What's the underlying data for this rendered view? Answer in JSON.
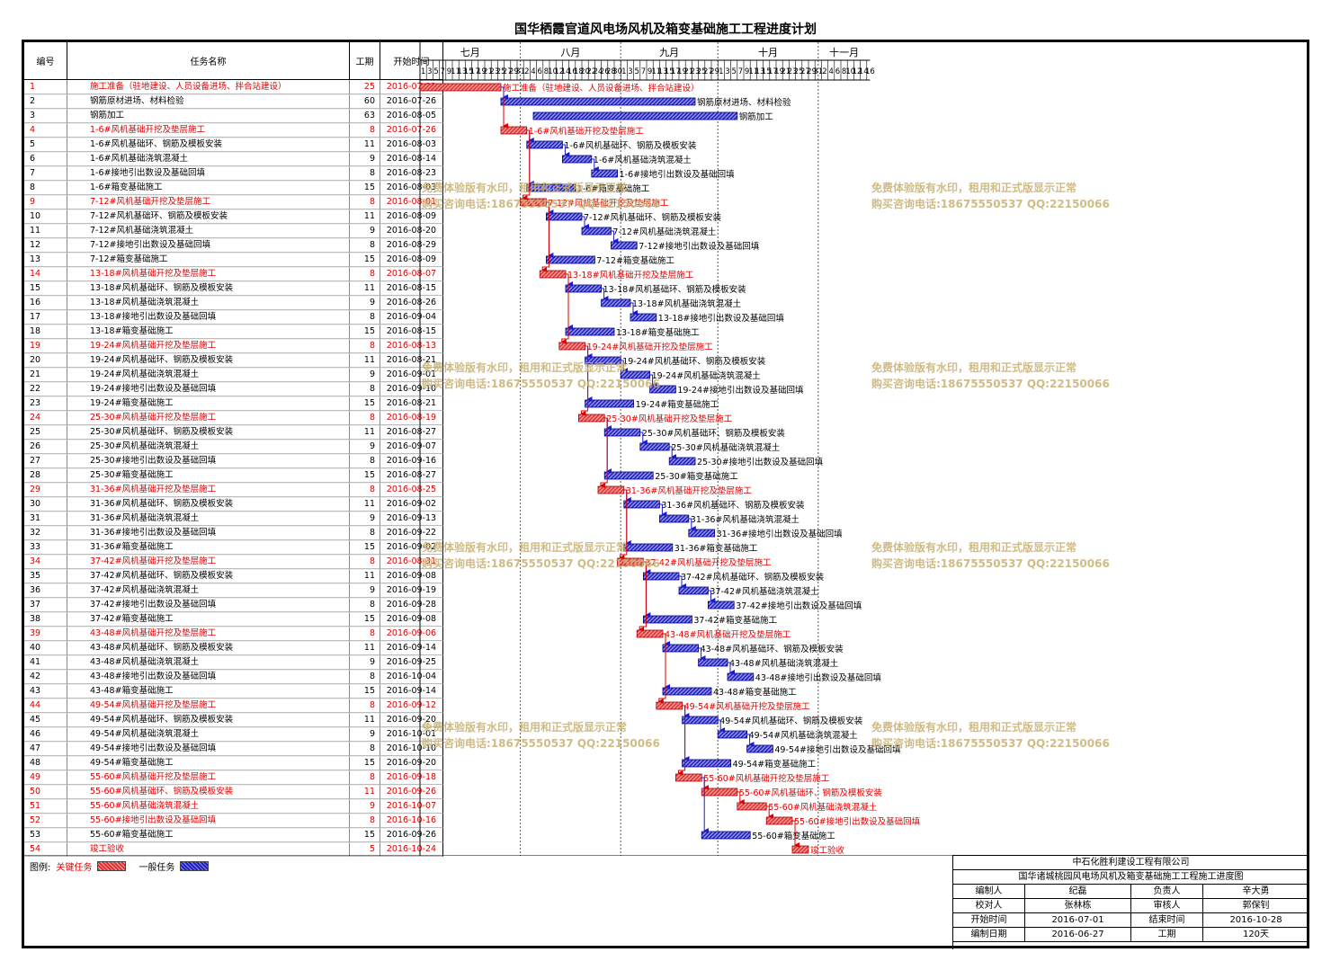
{
  "title": "国华栖霞官道风电场风机及箱变基础施工工程进度计划",
  "columns": {
    "no": "编号",
    "name": "任务名称",
    "duration": "工期",
    "start": "开始时间"
  },
  "months": [
    "七月",
    "八月",
    "九月",
    "十月",
    "十一月"
  ],
  "tasks": [
    {
      "no": "1",
      "name": "施工准备（驻地建设、人员设备进场、拌合站建设）",
      "duration": "25",
      "start": "2016-07-01",
      "critical": true
    },
    {
      "no": "2",
      "name": "钢筋原材进场、材料检验",
      "duration": "60",
      "start": "2016-07-26",
      "critical": false
    },
    {
      "no": "3",
      "name": "钢筋加工",
      "duration": "63",
      "start": "2016-08-05",
      "critical": false
    },
    {
      "no": "4",
      "name": "1-6#风机基础开挖及垫层施工",
      "duration": "8",
      "start": "2016-07-26",
      "critical": true
    },
    {
      "no": "5",
      "name": "1-6#风机基础环、钢筋及模板安装",
      "duration": "11",
      "start": "2016-08-03",
      "critical": false
    },
    {
      "no": "6",
      "name": "1-6#风机基础浇筑混凝土",
      "duration": "9",
      "start": "2016-08-14",
      "critical": false
    },
    {
      "no": "7",
      "name": "1-6#接地引出数设及基础回填",
      "duration": "8",
      "start": "2016-08-23",
      "critical": false
    },
    {
      "no": "8",
      "name": "1-6#箱变基础施工",
      "duration": "15",
      "start": "2016-08-03",
      "critical": false
    },
    {
      "no": "9",
      "name": "7-12#风机基础开挖及垫层施工",
      "duration": "8",
      "start": "2016-08-01",
      "critical": true
    },
    {
      "no": "10",
      "name": "7-12#风机基础环、钢筋及模板安装",
      "duration": "11",
      "start": "2016-08-09",
      "critical": false
    },
    {
      "no": "11",
      "name": "7-12#风机基础浇筑混凝土",
      "duration": "9",
      "start": "2016-08-20",
      "critical": false
    },
    {
      "no": "12",
      "name": "7-12#接地引出数设及基础回填",
      "duration": "8",
      "start": "2016-08-29",
      "critical": false
    },
    {
      "no": "13",
      "name": "7-12#箱变基础施工",
      "duration": "15",
      "start": "2016-08-09",
      "critical": false
    },
    {
      "no": "14",
      "name": "13-18#风机基础开挖及垫层施工",
      "duration": "8",
      "start": "2016-08-07",
      "critical": true
    },
    {
      "no": "15",
      "name": "13-18#风机基础环、钢筋及模板安装",
      "duration": "11",
      "start": "2016-08-15",
      "critical": false
    },
    {
      "no": "16",
      "name": "13-18#风机基础浇筑混凝土",
      "duration": "9",
      "start": "2016-08-26",
      "critical": false
    },
    {
      "no": "17",
      "name": "13-18#接地引出数设及基础回填",
      "duration": "8",
      "start": "2016-09-04",
      "critical": false
    },
    {
      "no": "18",
      "name": "13-18#箱变基础施工",
      "duration": "15",
      "start": "2016-08-15",
      "critical": false
    },
    {
      "no": "19",
      "name": "19-24#风机基础开挖及垫层施工",
      "duration": "8",
      "start": "2016-08-13",
      "critical": true
    },
    {
      "no": "20",
      "name": "19-24#风机基础环、钢筋及模板安装",
      "duration": "11",
      "start": "2016-08-21",
      "critical": false
    },
    {
      "no": "21",
      "name": "19-24#风机基础浇筑混凝土",
      "duration": "9",
      "start": "2016-09-01",
      "critical": false
    },
    {
      "no": "22",
      "name": "19-24#接地引出数设及基础回填",
      "duration": "8",
      "start": "2016-09-10",
      "critical": false
    },
    {
      "no": "23",
      "name": "19-24#箱变基础施工",
      "duration": "15",
      "start": "2016-08-21",
      "critical": false
    },
    {
      "no": "24",
      "name": "25-30#风机基础开挖及垫层施工",
      "duration": "8",
      "start": "2016-08-19",
      "critical": true
    },
    {
      "no": "25",
      "name": "25-30#风机基础环、钢筋及模板安装",
      "duration": "11",
      "start": "2016-08-27",
      "critical": false
    },
    {
      "no": "26",
      "name": "25-30#风机基础浇筑混凝土",
      "duration": "9",
      "start": "2016-09-07",
      "critical": false
    },
    {
      "no": "27",
      "name": "25-30#接地引出数设及基础回填",
      "duration": "8",
      "start": "2016-09-16",
      "critical": false
    },
    {
      "no": "28",
      "name": "25-30#箱变基础施工",
      "duration": "15",
      "start": "2016-08-27",
      "critical": false
    },
    {
      "no": "29",
      "name": "31-36#风机基础开挖及垫层施工",
      "duration": "8",
      "start": "2016-08-25",
      "critical": true
    },
    {
      "no": "30",
      "name": "31-36#风机基础环、钢筋及模板安装",
      "duration": "11",
      "start": "2016-09-02",
      "critical": false
    },
    {
      "no": "31",
      "name": "31-36#风机基础浇筑混凝土",
      "duration": "9",
      "start": "2016-09-13",
      "critical": false
    },
    {
      "no": "32",
      "name": "31-36#接地引出数设及基础回填",
      "duration": "8",
      "start": "2016-09-22",
      "critical": false
    },
    {
      "no": "33",
      "name": "31-36#箱变基础施工",
      "duration": "15",
      "start": "2016-09-02",
      "critical": false
    },
    {
      "no": "34",
      "name": "37-42#风机基础开挖及垫层施工",
      "duration": "8",
      "start": "2016-08-31",
      "critical": true
    },
    {
      "no": "35",
      "name": "37-42#风机基础环、钢筋及模板安装",
      "duration": "11",
      "start": "2016-09-08",
      "critical": false
    },
    {
      "no": "36",
      "name": "37-42#风机基础浇筑混凝土",
      "duration": "9",
      "start": "2016-09-19",
      "critical": false
    },
    {
      "no": "37",
      "name": "37-42#接地引出数设及基础回填",
      "duration": "8",
      "start": "2016-09-28",
      "critical": false
    },
    {
      "no": "38",
      "name": "37-42#箱变基础施工",
      "duration": "15",
      "start": "2016-09-08",
      "critical": false
    },
    {
      "no": "39",
      "name": "43-48#风机基础开挖及垫层施工",
      "duration": "8",
      "start": "2016-09-06",
      "critical": true
    },
    {
      "no": "40",
      "name": "43-48#风机基础环、钢筋及模板安装",
      "duration": "11",
      "start": "2016-09-14",
      "critical": false
    },
    {
      "no": "41",
      "name": "43-48#风机基础浇筑混凝土",
      "duration": "9",
      "start": "2016-09-25",
      "critical": false
    },
    {
      "no": "42",
      "name": "43-48#接地引出数设及基础回填",
      "duration": "8",
      "start": "2016-10-04",
      "critical": false
    },
    {
      "no": "43",
      "name": "43-48#箱变基础施工",
      "duration": "15",
      "start": "2016-09-14",
      "critical": false
    },
    {
      "no": "44",
      "name": "49-54#风机基础开挖及垫层施工",
      "duration": "8",
      "start": "2016-09-12",
      "critical": true
    },
    {
      "no": "45",
      "name": "49-54#风机基础环、钢筋及模板安装",
      "duration": "11",
      "start": "2016-09-20",
      "critical": false
    },
    {
      "no": "46",
      "name": "49-54#风机基础浇筑混凝土",
      "duration": "9",
      "start": "2016-10-01",
      "critical": false
    },
    {
      "no": "47",
      "name": "49-54#接地引出数设及基础回填",
      "duration": "8",
      "start": "2016-10-10",
      "critical": false
    },
    {
      "no": "48",
      "name": "49-54#箱变基础施工",
      "duration": "15",
      "start": "2016-09-20",
      "critical": false
    },
    {
      "no": "49",
      "name": "55-60#风机基础开挖及垫层施工",
      "duration": "8",
      "start": "2016-09-18",
      "critical": true
    },
    {
      "no": "50",
      "name": "55-60#风机基础环、钢筋及模板安装",
      "duration": "11",
      "start": "2016-09-26",
      "critical": true
    },
    {
      "no": "51",
      "name": "55-60#风机基础浇筑混凝土",
      "duration": "9",
      "start": "2016-10-07",
      "critical": true
    },
    {
      "no": "52",
      "name": "55-60#接地引出数设及基础回填",
      "duration": "8",
      "start": "2016-10-16",
      "critical": true
    },
    {
      "no": "53",
      "name": "55-60#箱变基础施工",
      "duration": "15",
      "start": "2016-09-26",
      "critical": false
    },
    {
      "no": "54",
      "name": "竣工验收",
      "duration": "5",
      "start": "2016-10-24",
      "critical": true
    }
  ],
  "chart_data": {
    "type": "gantt",
    "x_start": "2016-07-01",
    "x_end": "2016-11-16",
    "critical_color": "#e03030",
    "normal_color": "#2020c0",
    "link_color_critical": "#e00000",
    "link_color_normal": "#1a1ad0"
  },
  "legend": {
    "label": "图例:",
    "critical": "关键任务",
    "normal": "一般任务"
  },
  "info": {
    "company": "中石化胜利建设工程有限公司",
    "project": "国华诸城桃园风电场风机及箱变基础施工工程施工进度图",
    "r1": [
      "编制人",
      "纪磊",
      "负责人",
      "辛大勇"
    ],
    "r2": [
      "校对人",
      "张林栋",
      "审核人",
      "郭保钊"
    ],
    "r3": [
      "开始时间",
      "2016-07-01",
      "结束时间",
      "2016-10-28"
    ],
    "r4": [
      "编制日期",
      "2016-06-27",
      "工期",
      "120天"
    ]
  },
  "watermark": {
    "line1": "免费体验版有水印，租用和正式版显示正常",
    "line2": "购买咨询电话:18675550537 QQ:22150066"
  }
}
